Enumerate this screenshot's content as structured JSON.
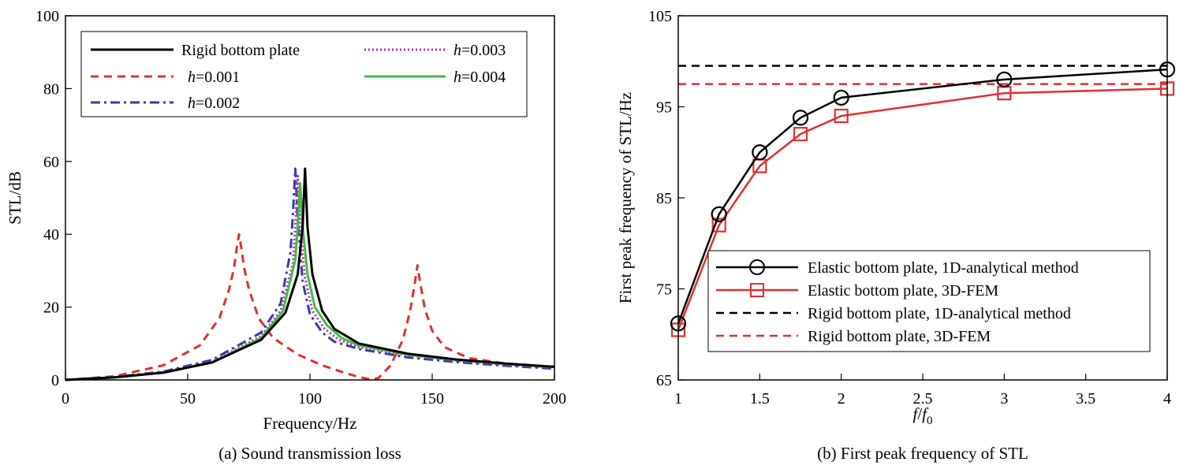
{
  "chart_data": [
    {
      "type": "line",
      "caption": "(a) Sound transmission loss",
      "xlabel": "Frequency/Hz",
      "ylabel": "STL/dB",
      "xlim": [
        0,
        200
      ],
      "ylim": [
        0,
        100
      ],
      "xticks": [
        0,
        50,
        100,
        150,
        200
      ],
      "yticks": [
        0,
        20,
        40,
        60,
        80,
        100
      ],
      "legend_position": "top-left",
      "series": [
        {
          "name": "Rigid bottom plate",
          "label_prefix": "",
          "label_value": "Rigid bottom plate",
          "color": "#000000",
          "dash": "solid",
          "peaks": [
            [
              98,
              58
            ]
          ],
          "x": [
            0,
            20,
            40,
            60,
            80,
            90,
            95,
            97,
            98,
            99,
            101,
            105,
            110,
            120,
            140,
            160,
            180,
            200
          ],
          "y": [
            0,
            0.7,
            2,
            4.8,
            11,
            18.5,
            29,
            42,
            58,
            42,
            29,
            19,
            14,
            10,
            7.2,
            5.6,
            4.5,
            3.6
          ]
        },
        {
          "name": "h=0.001",
          "label_prefix": "h",
          "label_value": "=0.001",
          "color": "#e03030",
          "dash": "dash",
          "peaks": [
            [
              71,
              40
            ],
            [
              144,
              31.5
            ]
          ],
          "x": [
            0,
            20,
            40,
            55,
            63,
            67,
            69,
            70,
            71,
            72,
            73,
            75,
            79,
            85,
            95,
            105,
            115,
            120,
            125,
            128,
            133,
            138,
            141,
            143,
            144,
            145,
            147,
            150,
            155,
            165,
            180,
            200
          ],
          "y": [
            0,
            1,
            4,
            9.5,
            17,
            25,
            31,
            36,
            40,
            36,
            31,
            25,
            17,
            11.5,
            7,
            4,
            1.8,
            0.8,
            0.1,
            0.5,
            4,
            11,
            19,
            27,
            31.5,
            27,
            19.5,
            13.5,
            9,
            6,
            4.5,
            3.6
          ]
        },
        {
          "name": "h=0.002",
          "label_prefix": "h",
          "label_value": "=0.002",
          "color": "#3a3aa8",
          "dash": "dashdot",
          "peaks": [
            [
              94,
              58
            ]
          ],
          "x": [
            0,
            20,
            40,
            60,
            80,
            88,
            92,
            93,
            94,
            95,
            97,
            100,
            105,
            110,
            120,
            140,
            160,
            180,
            200
          ],
          "y": [
            0,
            0.8,
            2.3,
            5.5,
            13,
            21,
            35,
            45,
            58,
            44,
            27,
            18,
            13,
            10.5,
            8.5,
            6.2,
            4.9,
            3.9,
            3.1
          ]
        },
        {
          "name": "h=0.003",
          "label_prefix": "h",
          "label_value": "=0.003",
          "color": "#b030b0",
          "dash": "dot",
          "peaks": [
            [
              95,
              56
            ]
          ],
          "x": [
            0,
            20,
            40,
            60,
            80,
            88,
            93,
            94,
            95,
            96,
            98,
            101,
            106,
            112,
            120,
            140,
            160,
            180,
            200
          ],
          "y": [
            0,
            0.7,
            2.1,
            5,
            12,
            19,
            32,
            42,
            56,
            42,
            28,
            19,
            14,
            11,
            9,
            6.8,
            5.3,
            4.2,
            3.4
          ]
        },
        {
          "name": "h=0.004",
          "label_prefix": "h",
          "label_value": "=0.004",
          "color": "#44bb44",
          "dash": "solid",
          "peaks": [
            [
              96,
              54
            ]
          ],
          "x": [
            0,
            20,
            40,
            60,
            80,
            89,
            94,
            95,
            96,
            97,
            99,
            102,
            107,
            113,
            120,
            140,
            160,
            180,
            200
          ],
          "y": [
            0,
            0.7,
            2,
            4.8,
            11.5,
            19,
            33,
            42,
            54,
            42,
            29,
            20,
            15,
            11.5,
            9.5,
            7,
            5.5,
            4.4,
            3.5
          ]
        }
      ]
    },
    {
      "type": "line",
      "caption": "(b) First peak frequency of STL",
      "xlabel_pre": "f",
      "xlabel_sep": "/",
      "xlabel_f": "f",
      "xlabel_sub": "0",
      "ylabel": "First peak frequency of STL/Hz",
      "xlim": [
        1,
        4
      ],
      "ylim": [
        65,
        105
      ],
      "xticks": [
        1,
        1.5,
        2,
        2.5,
        3,
        3.5,
        4
      ],
      "xtick_labels": [
        "1",
        "1.5",
        "2",
        "2.5",
        "3",
        "3.5",
        "4"
      ],
      "yticks": [
        65,
        75,
        85,
        95,
        105
      ],
      "legend_position": "bottom-right",
      "series": [
        {
          "name": "Elastic bottom plate, 1D-analytical method",
          "color": "#000000",
          "dash": "solid",
          "marker": "circle",
          "x": [
            1,
            1.25,
            1.5,
            1.75,
            2,
            3,
            4
          ],
          "y": [
            71.2,
            83.2,
            90,
            93.8,
            96,
            98,
            99.1
          ]
        },
        {
          "name": "Elastic bottom plate, 3D-FEM",
          "color": "#e03030",
          "dash": "solid",
          "marker": "square",
          "x": [
            1,
            1.25,
            1.5,
            1.75,
            2,
            3,
            4
          ],
          "y": [
            70.5,
            82,
            88.5,
            92,
            94,
            96.5,
            97
          ]
        },
        {
          "name": "Rigid bottom plate, 1D-analytical method",
          "color": "#000000",
          "dash": "dash",
          "marker": "none",
          "x": [
            1,
            4
          ],
          "y": [
            99.5,
            99.5
          ]
        },
        {
          "name": "Rigid bottom plate, 3D-FEM",
          "color": "#e03030",
          "dash": "dash",
          "marker": "none",
          "x": [
            1,
            4
          ],
          "y": [
            97.5,
            97.5
          ]
        }
      ]
    }
  ]
}
